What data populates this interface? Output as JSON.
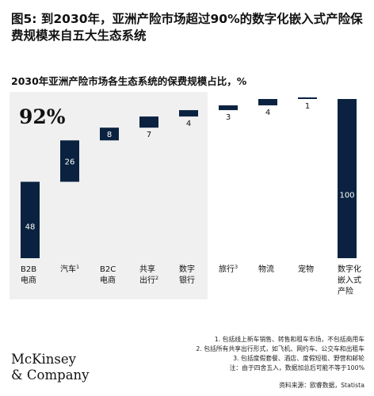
{
  "title": "图5: 到2030年，亚洲产险市场超过90%的数字化嵌入式产险保费规模来自五大生态系统",
  "subtitle": "2030年亚洲产险市场各生态系统的保费规模占比，%",
  "highlight": "92%",
  "colors": {
    "bar": "#0a2240",
    "panel": "#f0f0f0"
  },
  "chart_data": {
    "type": "bar",
    "subtype": "waterfall",
    "categories": [
      {
        "label": "B2B\n电商",
        "sup": ""
      },
      {
        "label": "汽车",
        "sup": "1"
      },
      {
        "label": "B2C\n电商",
        "sup": ""
      },
      {
        "label": "共享\n出行",
        "sup": "2"
      },
      {
        "label": "数字\n银行",
        "sup": ""
      },
      {
        "label": "旅行",
        "sup": "3"
      },
      {
        "label": "物流",
        "sup": ""
      },
      {
        "label": "宠物",
        "sup": ""
      },
      {
        "label": "数字化\n嵌入式\n产险",
        "sup": ""
      }
    ],
    "values": [
      48,
      26,
      8,
      7,
      4,
      3,
      4,
      1,
      100
    ],
    "total_index": 8,
    "ylim": [
      0,
      100
    ]
  },
  "footnotes": [
    "1.  包括线上新车销售、转售和租车市场，不包括商用车",
    "2.  包括所有共享出行形式，如飞机、网约车、公交车和出租车",
    "3.  包括度假套餐、酒店、度假短租、野营和邮轮",
    "注：由于四舍五入，数据加总后可能不等于100%"
  ],
  "source": "资料来源：欧睿数据，Statista",
  "logo": {
    "line1": "McKinsey",
    "line2": "& Company"
  }
}
